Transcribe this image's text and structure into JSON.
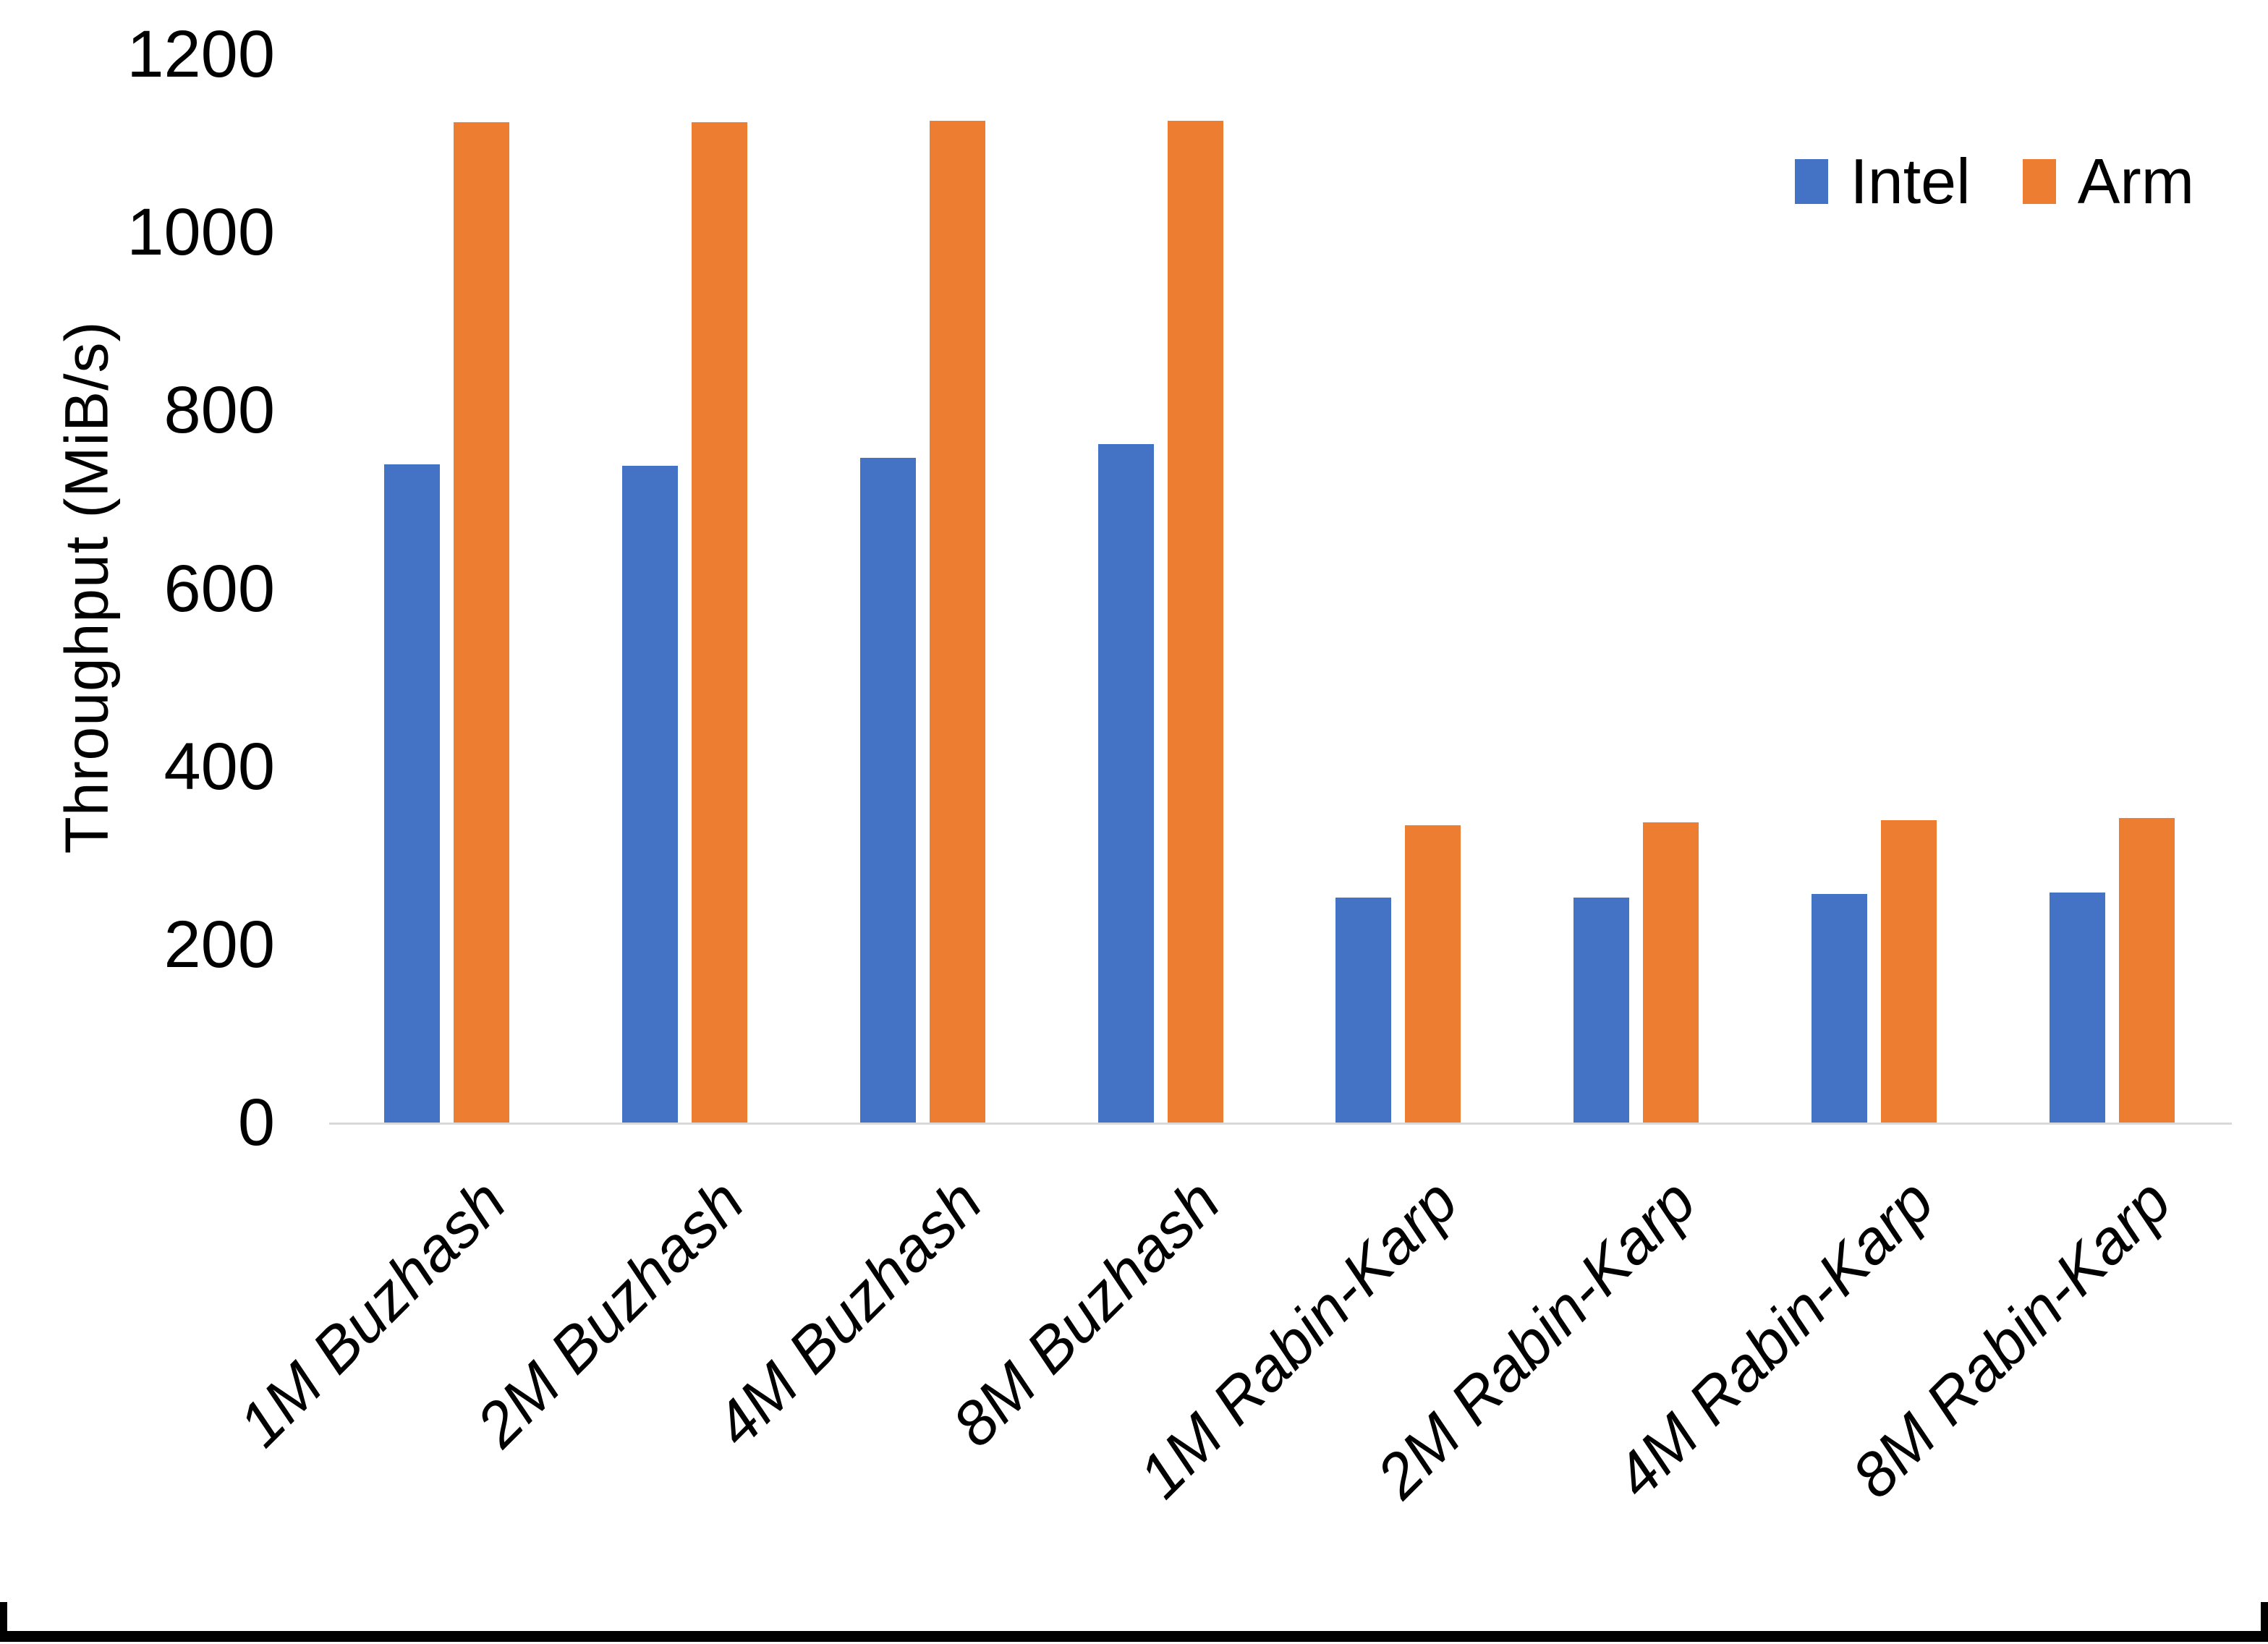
{
  "chart_data": {
    "type": "bar",
    "title": "",
    "xlabel": "",
    "ylabel": "Throughput (MiB/s)",
    "categories": [
      "1M Buzhash",
      "2M Buzhash",
      "4M Buzhash",
      "8M Buzhash",
      "1M Rabin-Karp",
      "2M Rabin-Karp",
      "4M Rabin-Karp",
      "8M Rabin-Karp"
    ],
    "series": [
      {
        "name": "Intel",
        "color": "#4472C4",
        "values": [
          739,
          738,
          747,
          762,
          253,
          253,
          257,
          258
        ]
      },
      {
        "name": "Arm",
        "color": "#ED7D31",
        "values": [
          1124,
          1124,
          1125,
          1125,
          334,
          337,
          340,
          342
        ]
      }
    ],
    "ylim": [
      0,
      1200
    ],
    "yticks": [
      0,
      200,
      400,
      600,
      800,
      1000,
      1200
    ],
    "grid": false,
    "legend_position": "top-right"
  },
  "frame": {
    "background": "#FFFFFF",
    "axis_line_color": "#D9D9D9",
    "text_color": "#000000",
    "bottom_border_color": "#000000"
  }
}
